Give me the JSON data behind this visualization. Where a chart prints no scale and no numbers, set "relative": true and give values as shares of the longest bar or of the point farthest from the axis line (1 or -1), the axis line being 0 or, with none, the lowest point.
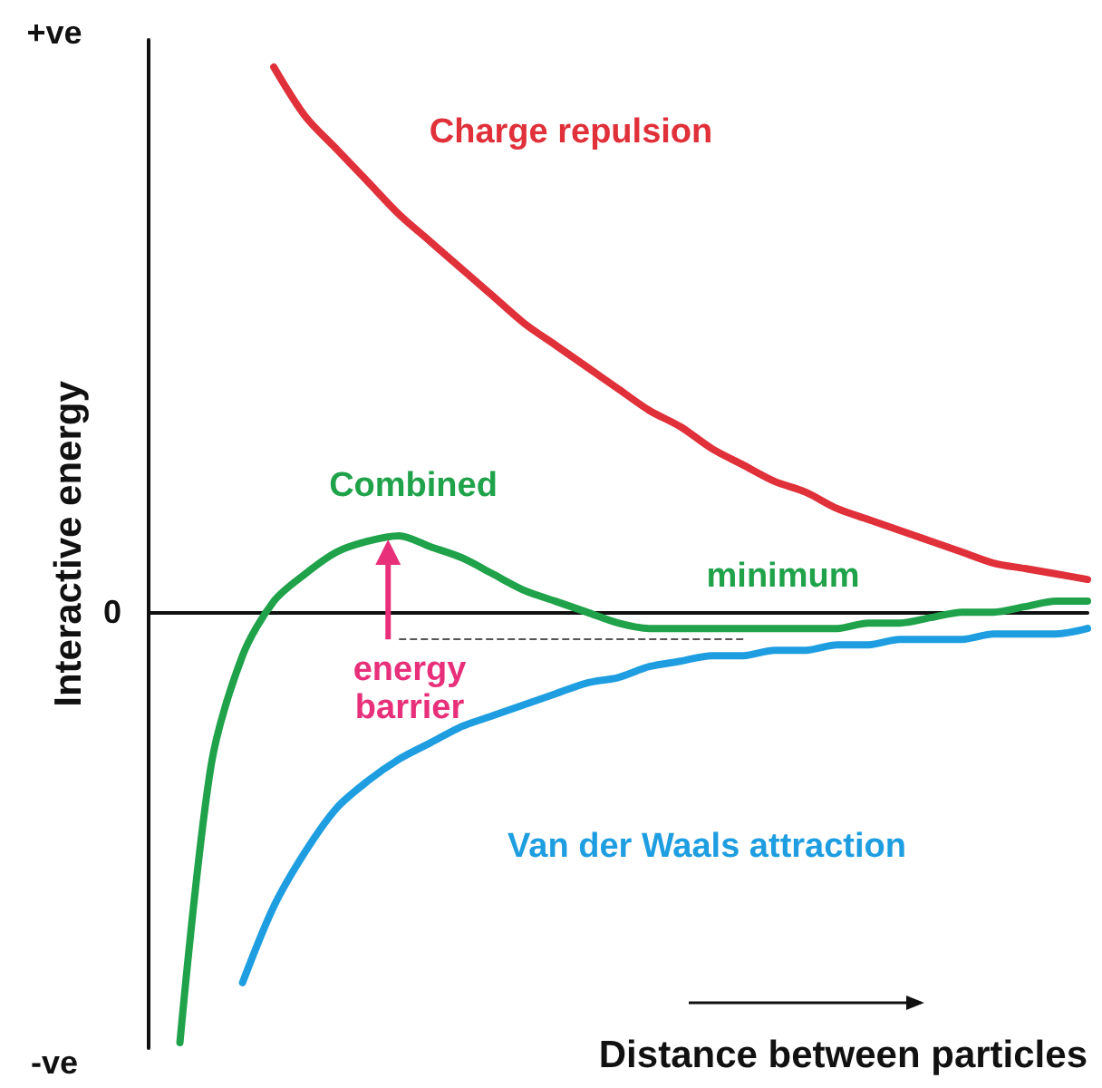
{
  "chart_data": {
    "type": "line",
    "relative": true,
    "xlabel": "Distance between particles",
    "ylabel": "Interactive energy",
    "grid": false,
    "legend": false,
    "marker": "none",
    "line_style": "solid",
    "categories": [
      null,
      null,
      null,
      null,
      null,
      null,
      null,
      null,
      null,
      null,
      null,
      null,
      null,
      null,
      null,
      null,
      null,
      null,
      null,
      null,
      null,
      null,
      null,
      null,
      null,
      null,
      null,
      null,
      null,
      null,
      null
    ],
    "series": [
      {
        "name": "Charge repulsion",
        "color": "#e0303a",
        "values": [
          null,
          null,
          null,
          null,
          1,
          0.91,
          0.85,
          0.79,
          0.73,
          0.68,
          0.63,
          0.58,
          0.53,
          0.49,
          0.45,
          0.41,
          0.37,
          0.34,
          0.3,
          0.27,
          0.24,
          0.22,
          0.19,
          0.17,
          0.15,
          0.13,
          0.11,
          0.09,
          0.08,
          0.07,
          0.06
        ]
      },
      {
        "name": "Combined",
        "color": "#1fa24a",
        "values": [
          null,
          -0.79,
          -0.28,
          -0.08,
          0.02,
          0.07,
          0.11,
          0.13,
          0.14,
          0.12,
          0.1,
          0.07,
          0.04,
          0.02,
          0,
          -0.02,
          -0.03,
          -0.03,
          -0.03,
          -0.03,
          -0.03,
          -0.03,
          -0.03,
          -0.02,
          -0.02,
          -0.01,
          0,
          0,
          0.01,
          0.02,
          0.02
        ]
      },
      {
        "name": "Van der Waals attraction",
        "color": "#1e9ee0",
        "values": [
          null,
          null,
          null,
          -0.68,
          -0.54,
          -0.44,
          -0.36,
          -0.31,
          -0.27,
          -0.24,
          -0.21,
          -0.19,
          -0.17,
          -0.15,
          -0.13,
          -0.12,
          -0.1,
          -0.09,
          -0.08,
          -0.08,
          -0.07,
          -0.07,
          -0.06,
          -0.06,
          -0.05,
          -0.05,
          -0.05,
          -0.04,
          -0.04,
          -0.04,
          -0.03
        ]
      }
    ],
    "ref_lines": [
      {
        "axis": "y",
        "value": -0.05,
        "label": null,
        "color": "#555555",
        "line_style": "dashed"
      }
    ],
    "annotations": [
      "+ve",
      "0",
      "-ve",
      "minimum",
      "energy\nbarrier"
    ]
  }
}
